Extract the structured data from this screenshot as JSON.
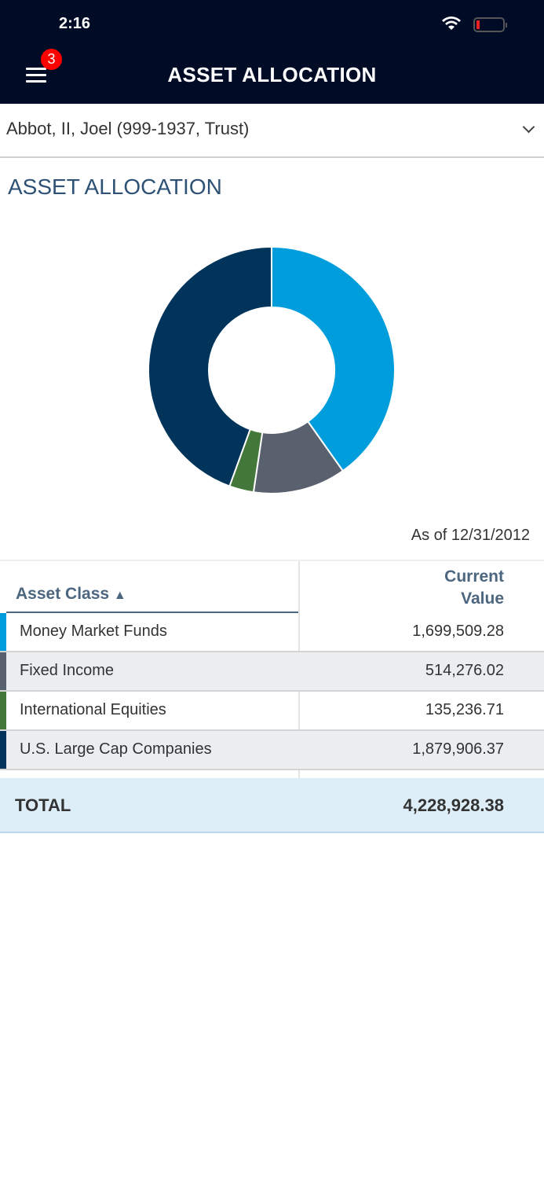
{
  "status": {
    "time": "2:16"
  },
  "header": {
    "title": "ASSET ALLOCATION",
    "badge": "3"
  },
  "account": {
    "selected": "Abbot, II, Joel (999-1937, Trust)"
  },
  "section_title": "ASSET ALLOCATION",
  "as_of": "As of 12/31/2012",
  "table": {
    "col1": "Asset Class",
    "col2_line1": "Current",
    "col2_line2": "Value",
    "sort": "ascending",
    "rows": [
      {
        "name": "Money Market Funds",
        "value": "1,699,509.28",
        "color": "#009ddd"
      },
      {
        "name": "Fixed Income",
        "value": "514,276.02",
        "color": "#5a616e"
      },
      {
        "name": "International Equities",
        "value": "135,236.71",
        "color": "#44783a"
      },
      {
        "name": "U.S. Large Cap Companies",
        "value": "1,879,906.37",
        "color": "#00345a"
      }
    ],
    "total_label": "TOTAL",
    "total_value": "4,228,928.38"
  },
  "chart_data": {
    "type": "pie",
    "donut": true,
    "categories": [
      "Money Market Funds",
      "Fixed Income",
      "International Equities",
      "U.S. Large Cap Companies"
    ],
    "values": [
      1699509.28,
      514276.02,
      135236.71,
      1879906.37
    ],
    "colors": [
      "#009ddd",
      "#5a616e",
      "#44783a",
      "#00345a"
    ]
  }
}
